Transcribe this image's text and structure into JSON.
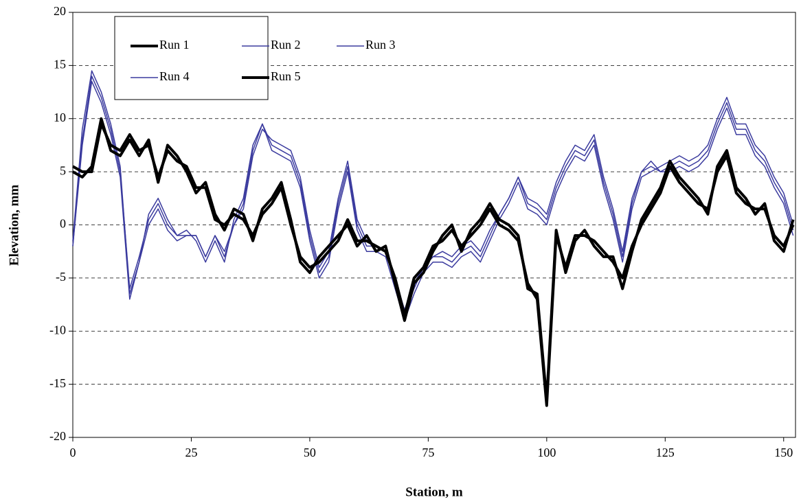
{
  "chart_data": {
    "type": "line",
    "xlabel": "Station, m",
    "ylabel": "Elevation, mm",
    "xlim": [
      0,
      152.5
    ],
    "xticks": [
      0,
      25,
      50,
      75,
      100,
      125,
      150
    ],
    "ylim": [
      -20,
      20
    ],
    "yticks": [
      -20,
      -15,
      -10,
      -5,
      0,
      5,
      10,
      15,
      20
    ],
    "grid": true,
    "legend": "upper left",
    "x": [
      0,
      2,
      4,
      6,
      8,
      10,
      12,
      14,
      16,
      18,
      20,
      22,
      24,
      26,
      28,
      30,
      32,
      34,
      36,
      38,
      40,
      42,
      44,
      46,
      48,
      50,
      52,
      54,
      56,
      58,
      60,
      62,
      64,
      66,
      68,
      70,
      72,
      74,
      76,
      78,
      80,
      82,
      84,
      86,
      88,
      90,
      92,
      94,
      96,
      98,
      100,
      102,
      104,
      106,
      108,
      110,
      112,
      114,
      116,
      118,
      120,
      122,
      124,
      126,
      128,
      130,
      132,
      134,
      136,
      138,
      140,
      142,
      144,
      146,
      148,
      150,
      152
    ],
    "series": [
      {
        "name": "Run 1",
        "color": "#000000",
        "width": 4,
        "values": [
          5.5,
          5,
          5,
          9.5,
          7.5,
          7,
          8.5,
          7,
          7.5,
          4.5,
          7,
          6,
          5.5,
          3.5,
          3.5,
          0.5,
          0,
          1,
          0.5,
          -1,
          1,
          2,
          3.5,
          0,
          -3,
          -4,
          -3.5,
          -2.5,
          -1.5,
          0.5,
          -1.5,
          -1.5,
          -2,
          -2.5,
          -5,
          -8.5,
          -5,
          -4,
          -2,
          -1.5,
          -0.5,
          -2,
          -1,
          0,
          1.5,
          0,
          -0.5,
          -1.5,
          -5.5,
          -7,
          -17,
          -1,
          -4,
          -1,
          -1,
          -1.5,
          -2.5,
          -3.5,
          -5,
          -2,
          0,
          1.5,
          3,
          5.5,
          4,
          3,
          2,
          1.5,
          5,
          6.5,
          3,
          2,
          1.5,
          1.5,
          -1,
          -2,
          0
        ]
      },
      {
        "name": "Run 2",
        "color": "#3a3a9e",
        "width": 1.5,
        "values": [
          -2,
          8,
          14,
          12,
          9,
          5,
          -6,
          -3,
          0.5,
          2,
          0,
          -1,
          -1,
          -1,
          -3,
          -1,
          -3,
          0,
          2,
          7,
          9.5,
          7.5,
          7,
          6.5,
          4,
          -1,
          -4.5,
          -3,
          2,
          5.5,
          0,
          -2,
          -2,
          -2.5,
          -5.5,
          -8.5,
          -6,
          -4,
          -3,
          -3,
          -3.5,
          -2.5,
          -2,
          -3,
          -1,
          1,
          2.5,
          4.5,
          2,
          1.5,
          0.5,
          3.5,
          5.5,
          7,
          6.5,
          8,
          4,
          1,
          -3,
          2,
          5,
          5.5,
          5,
          5.5,
          6,
          5.5,
          6,
          7,
          9.5,
          11.5,
          9,
          9,
          7,
          6,
          4,
          2.5,
          -0.5
        ]
      },
      {
        "name": "Run 3",
        "color": "#3a3a9e",
        "width": 1.5,
        "values": [
          -1.5,
          9,
          14.5,
          12.5,
          9.5,
          5.5,
          -6.5,
          -3.5,
          1,
          2.5,
          0.5,
          -1,
          -0.5,
          -1.5,
          -3.5,
          -1.5,
          -3.5,
          0.5,
          2.5,
          7.5,
          9.5,
          7,
          6.5,
          6,
          3.5,
          -1.5,
          -5,
          -3.5,
          1.5,
          5,
          -0.5,
          -2.5,
          -2.5,
          -3,
          -6,
          -9,
          -6.5,
          -4.5,
          -3.5,
          -3.5,
          -4,
          -3,
          -2.5,
          -3.5,
          -1.5,
          0.5,
          2,
          4,
          1.5,
          1,
          0,
          3,
          5,
          6.5,
          6,
          7.5,
          3.5,
          0.5,
          -3.5,
          1.5,
          4.5,
          5,
          5.5,
          6,
          6.5,
          6,
          6.5,
          7.5,
          10,
          12,
          9.5,
          9.5,
          7.5,
          6.5,
          4.5,
          3,
          0
        ]
      },
      {
        "name": "Run 4",
        "color": "#3a3a9e",
        "width": 1.5,
        "values": [
          -2,
          7.5,
          13.5,
          11.5,
          8.5,
          4.5,
          -7,
          -3.5,
          0,
          1.5,
          -0.5,
          -1.5,
          -1,
          -1,
          -3,
          -1,
          -2.5,
          0,
          1.5,
          6.5,
          9,
          8,
          7.5,
          7,
          4.5,
          -0.5,
          -4,
          -2.5,
          2.5,
          6,
          0.5,
          -1.5,
          -2,
          -2.5,
          -5,
          -8,
          -5.5,
          -4,
          -3,
          -2.5,
          -3,
          -2,
          -1.5,
          -2.5,
          -0.5,
          1,
          2.5,
          4.5,
          2.5,
          2,
          1,
          4,
          6,
          7.5,
          7,
          8.5,
          4.5,
          1.5,
          -2.5,
          2.5,
          5,
          6,
          5,
          5,
          5.5,
          5,
          5.5,
          6.5,
          9,
          11,
          8.5,
          8.5,
          6.5,
          5.5,
          3.5,
          2,
          -1
        ]
      },
      {
        "name": "Run 5",
        "color": "#000000",
        "width": 4,
        "values": [
          5,
          4.5,
          5.5,
          10,
          7,
          6.5,
          8,
          6.5,
          8,
          4,
          7.5,
          6.5,
          5,
          3,
          4,
          1,
          -0.5,
          1.5,
          1,
          -1.5,
          1.5,
          2.5,
          4,
          0.5,
          -3.5,
          -4.5,
          -3,
          -2,
          -1,
          0,
          -2,
          -1,
          -2.5,
          -2,
          -5.5,
          -9,
          -5.5,
          -4.5,
          -2.5,
          -1,
          0,
          -2.5,
          -0.5,
          0.5,
          2,
          0.5,
          0,
          -1,
          -6,
          -6.5,
          -16.5,
          -0.5,
          -4.5,
          -1.5,
          -0.5,
          -2,
          -3,
          -3,
          -6,
          -2.5,
          0.5,
          2,
          3.5,
          6,
          4.5,
          3.5,
          2.5,
          1,
          5.5,
          7,
          3.5,
          2.5,
          1,
          2,
          -1.5,
          -2.5,
          0.5
        ]
      }
    ]
  }
}
